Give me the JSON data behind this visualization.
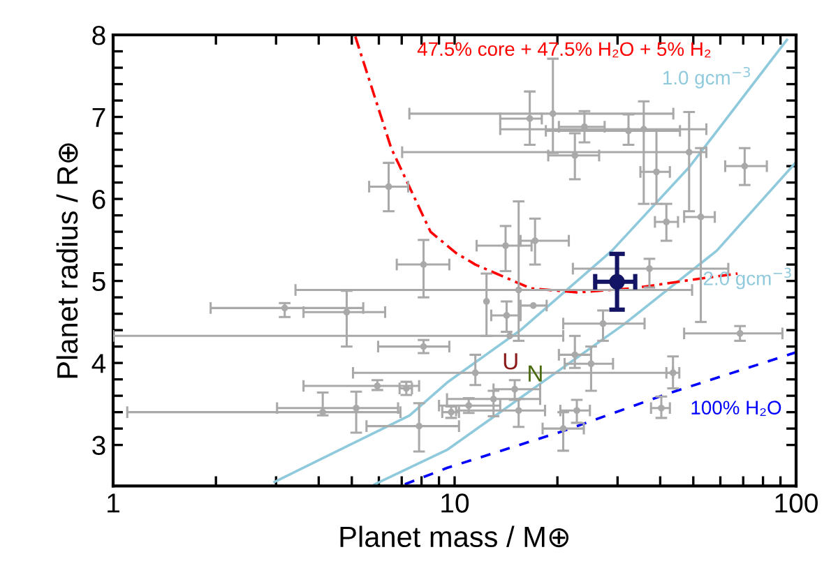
{
  "chart_data": {
    "type": "scatter",
    "xlabel": "Planet mass / M⊕",
    "ylabel": "Planet radius / R⊕",
    "log": "x",
    "grid": false,
    "xlim": [
      1,
      100
    ],
    "ylim": [
      2.5,
      8
    ],
    "xticks": [
      1,
      {
        "value": 2,
        "label": null
      },
      {
        "value": 3,
        "label": null
      },
      {
        "value": 4,
        "label": null
      },
      {
        "value": 5,
        "label": null
      },
      {
        "value": 6,
        "label": null
      },
      {
        "value": 7,
        "label": null
      },
      {
        "value": 8,
        "label": null
      },
      {
        "value": 9,
        "label": null
      },
      10,
      {
        "value": 20,
        "label": null
      },
      {
        "value": 30,
        "label": null
      },
      {
        "value": 40,
        "label": null
      },
      {
        "value": 50,
        "label": null
      },
      {
        "value": 60,
        "label": null
      },
      {
        "value": 70,
        "label": null
      },
      {
        "value": 80,
        "label": null
      },
      {
        "value": 90,
        "label": null
      },
      100
    ],
    "yticks": [
      3,
      {
        "value": 3.2,
        "label": null
      },
      {
        "value": 3.4,
        "label": null
      },
      {
        "value": 3.6,
        "label": null
      },
      {
        "value": 3.8,
        "label": null
      },
      4,
      {
        "value": 4.2,
        "label": null
      },
      {
        "value": 4.4,
        "label": null
      },
      {
        "value": 4.6,
        "label": null
      },
      {
        "value": 4.8,
        "label": null
      },
      5,
      {
        "value": 5.2,
        "label": null
      },
      {
        "value": 5.4,
        "label": null
      },
      {
        "value": 5.6,
        "label": null
      },
      {
        "value": 5.8,
        "label": null
      },
      6,
      {
        "value": 6.2,
        "label": null
      },
      {
        "value": 6.4,
        "label": null
      },
      {
        "value": 6.6,
        "label": null
      },
      {
        "value": 6.8,
        "label": null
      },
      7,
      {
        "value": 7.2,
        "label": null
      },
      {
        "value": 7.4,
        "label": null
      },
      {
        "value": 7.6,
        "label": null
      },
      {
        "value": 7.8,
        "label": null
      },
      8
    ],
    "series": [
      {
        "type": "line",
        "name": "1.0 gcm$^{−3}$",
        "color": "#8ec9dc",
        "line_style": "solid",
        "x": [
          2.97,
          7.38,
          9.5,
          15.7,
          28.9,
          48.7,
          94.0
        ],
        "values": [
          2.55,
          3.36,
          3.76,
          4.41,
          5.37,
          6.39,
          7.94
        ]
      },
      {
        "type": "line",
        "name": "2.0 gcm$^{−3}$",
        "color": "#8ec9dc",
        "line_style": "solid",
        "x": [
          5.83,
          9.5,
          31.3,
          58.6,
          100
        ],
        "values": [
          2.52,
          2.94,
          4.47,
          5.37,
          6.45
        ]
      },
      {
        "type": "line",
        "name": "47.5% core + 47.5% H₂O + 5% H₂",
        "color": "#ff0000",
        "line_style": "dashdot",
        "x": [
          5.12,
          6.52,
          8.5,
          10.1,
          11.5,
          16.7,
          22.8,
          33.3,
          48.7,
          67.4
        ],
        "values": [
          7.98,
          6.62,
          5.6,
          5.34,
          5.2,
          4.91,
          4.86,
          4.91,
          5.01,
          5.09
        ]
      },
      {
        "type": "line",
        "name": "100% H₂O",
        "color": "#0000ff",
        "line_style": "dashed",
        "x": [
          7.15,
          9.5,
          20.8,
          41.7,
          100
        ],
        "values": [
          2.52,
          2.72,
          3.17,
          3.62,
          4.13
        ]
      },
      {
        "color": "#a9a9a9",
        "marker": "circle",
        "x": [
          19.4,
          16.6,
          24.0,
          22.5,
          32.3,
          35.8,
          39.0,
          48.6,
          52.6,
          70.7,
          41.7,
          6.41,
          8.11,
          14.1,
          17.2,
          15.4,
          37.2,
          14.2,
          17.0,
          12.4,
          14.5,
          27.2,
          68.5,
          22.5,
          25.1,
          43.6,
          11.5,
          40.3,
          22.8,
          20.8,
          15.0,
          15.4,
          13.0,
          11.0,
          3.18,
          4.83,
          8.11,
          5.94,
          7.22,
          4.11,
          5.15,
          7.87,
          9.77
        ],
        "values": [
          7.04,
          6.98,
          6.88,
          6.53,
          6.83,
          6.85,
          6.33,
          6.57,
          5.78,
          6.4,
          5.72,
          6.15,
          5.2,
          5.43,
          5.49,
          4.89,
          5.15,
          4.58,
          4.7,
          4.75,
          4.33,
          4.48,
          4.36,
          4.1,
          3.99,
          3.88,
          3.88,
          3.45,
          3.42,
          3.2,
          3.68,
          3.42,
          3.56,
          3.48,
          4.67,
          4.62,
          4.2,
          3.72,
          3.69,
          3.4,
          3.45,
          3.23,
          3.4
        ],
        "xerrors": [
          [
            7.37,
            43.7
          ],
          [
            13.6,
            18.0
          ],
          [
            20.2,
            27.5
          ],
          [
            18.8,
            26.5
          ],
          [
            18.5,
            45.7
          ],
          [
            13.6,
            54.6
          ],
          [
            35.0,
            42.7
          ],
          [
            7.02,
            54.6
          ],
          [
            47.0,
            57.8
          ],
          [
            62.0,
            82.1
          ],
          [
            38.6,
            45.1
          ],
          [
            5.62,
            7.31
          ],
          [
            6.77,
            9.65
          ],
          [
            11.6,
            16.8
          ],
          [
            15.6,
            21.6
          ],
          [
            3.42,
            49.6
          ],
          [
            22.2,
            63.3
          ],
          [
            12.8,
            15.6
          ],
          [
            15.6,
            18.6
          ],
          null,
          [
            1.0,
            20.8
          ],
          [
            20.8,
            36.0
          ],
          [
            47.0,
            91.2
          ],
          [
            20.2,
            25.1
          ],
          [
            21.0,
            29.1
          ],
          [
            41.7,
            45.5
          ],
          [
            5.04,
            43.6
          ],
          [
            37.6,
            42.7
          ],
          [
            20.4,
            24.9
          ],
          [
            18.1,
            23.9
          ],
          [
            13.0,
            17.8
          ],
          [
            10.1,
            18.4
          ],
          [
            9.5,
            17.8
          ],
          [
            9.0,
            13.6
          ],
          [
            1.93,
            5.4
          ],
          [
            3.61,
            6.26
          ],
          [
            5.97,
            9.65
          ],
          [
            3.61,
            7.87
          ],
          [
            6.9,
            7.5
          ],
          [
            1.1,
            6.94
          ],
          [
            3.02,
            6.83
          ],
          [
            5.52,
            10.3
          ],
          [
            9.2,
            10.3
          ]
        ],
        "errors": [
          [
            6.56,
            7.71
          ],
          [
            6.66,
            7.31
          ],
          [
            6.69,
            7.07
          ],
          [
            6.24,
            6.8
          ],
          [
            6.66,
            7.03
          ],
          [
            5.94,
            7.19
          ],
          [
            5.94,
            6.83
          ],
          [
            5.85,
            7.06
          ],
          [
            4.5,
            6.62
          ],
          [
            6.17,
            6.62
          ],
          [
            5.49,
            5.94
          ],
          [
            5.85,
            6.44
          ],
          [
            4.8,
            5.5
          ],
          [
            5.12,
            5.67
          ],
          [
            5.2,
            5.76
          ],
          [
            4.27,
            5.97
          ],
          [
            4.92,
            5.27
          ],
          [
            4.38,
            4.75
          ],
          null,
          [
            4.33,
            5.09
          ],
          null,
          [
            4.27,
            4.64
          ],
          [
            4.27,
            4.45
          ],
          [
            3.94,
            4.33
          ],
          [
            3.66,
            4.2
          ],
          [
            3.69,
            4.08
          ],
          [
            3.73,
            4.1
          ],
          [
            3.33,
            3.59
          ],
          [
            3.27,
            3.55
          ],
          [
            2.93,
            3.4
          ],
          [
            3.55,
            3.79
          ],
          [
            3.22,
            3.56
          ],
          [
            3.35,
            3.66
          ],
          [
            3.39,
            3.57
          ],
          [
            4.56,
            4.73
          ],
          [
            4.2,
            4.88
          ],
          [
            4.12,
            4.28
          ],
          [
            3.67,
            3.79
          ],
          [
            3.61,
            3.77
          ],
          [
            3.36,
            3.64
          ],
          [
            3.15,
            3.65
          ],
          [
            2.92,
            3.51
          ],
          [
            3.33,
            3.47
          ]
        ]
      },
      {
        "color": "#141464",
        "marker": "circle",
        "x": [
          29.9
        ],
        "values": [
          4.99
        ],
        "xerrors": [
          [
            25.8,
            33.8
          ]
        ],
        "errors": [
          [
            4.65,
            5.33
          ]
        ]
      }
    ],
    "annotations": [
      "U",
      "N"
    ]
  }
}
